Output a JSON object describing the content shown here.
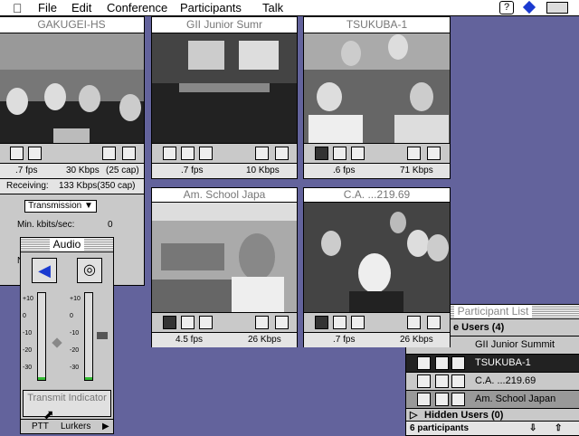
{
  "menu_bar": {
    "items": [
      "File",
      "Edit",
      "Conference",
      "Participants",
      "Talk"
    ]
  },
  "windows": [
    {
      "title": "GAKUGEI-HS",
      "fps": ".7 fps",
      "kbps": "30 Kbps",
      "cap": "(25 cap)"
    },
    {
      "title": "GII Junior Sumr",
      "fps": ".7 fps",
      "kbps": "10 Kbps"
    },
    {
      "title": "TSUKUBA-1",
      "fps": ".6 fps",
      "kbps": "71 Kbps"
    },
    {
      "title": "Am. School Japa",
      "fps": "4.5 fps",
      "kbps": "26 Kbps"
    },
    {
      "title": "C.A. ...219.69",
      "fps": ".7 fps",
      "kbps": "26 Kbps"
    }
  ],
  "control_panel": {
    "receiving_label": "Receiving:",
    "receiving_value": "133 Kbps(350 cap)",
    "mode": "Transmission",
    "min_label": "Min. kbits/sec:",
    "min_value": "0"
  },
  "audio": {
    "title": "Audio",
    "scale": [
      "+10",
      "0",
      "-10",
      "-20",
      "-30"
    ],
    "transmit_button": "Transmit Indicator",
    "ptt": "PTT",
    "lurkers": "Lurkers"
  },
  "participant_list": {
    "title": "Participant List",
    "visible_header": "e Users (4)",
    "participants": [
      "GII Junior Summit",
      "TSUKUBA-1",
      "C.A. ...219.69",
      "Am. School Japan"
    ],
    "hidden_header": "Hidden Users (0)",
    "count": "6 participants"
  }
}
